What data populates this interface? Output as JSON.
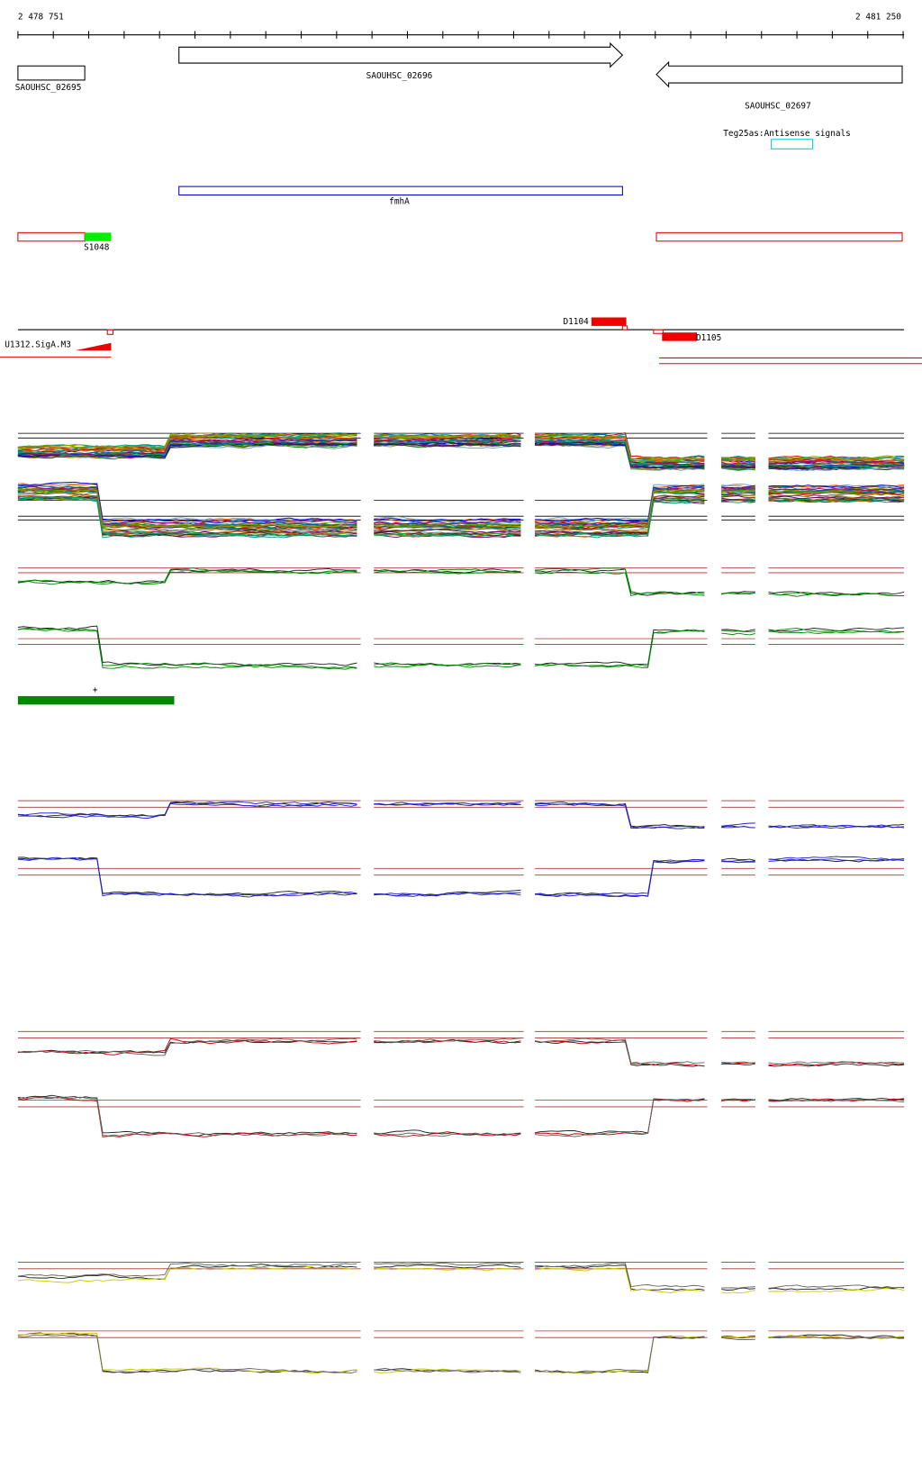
{
  "ruler": {
    "start": "2 478 751",
    "end": "2 481 250"
  },
  "genes": [
    {
      "label": "SAOUHSC_02695"
    },
    {
      "label": "SAOUHSC_02696"
    },
    {
      "label": "SAOUHSC_02697"
    }
  ],
  "antisense": {
    "label": "Teg25as:Antisense signals"
  },
  "feature": {
    "label": "fmhA"
  },
  "segments": [
    {
      "label": "S1048"
    }
  ],
  "transcripts": [
    {
      "label": "D1104"
    },
    {
      "label": "D1105"
    }
  ],
  "promoter": {
    "label": "U1312.SigA.M3"
  },
  "strand": {
    "label": "+"
  }
}
